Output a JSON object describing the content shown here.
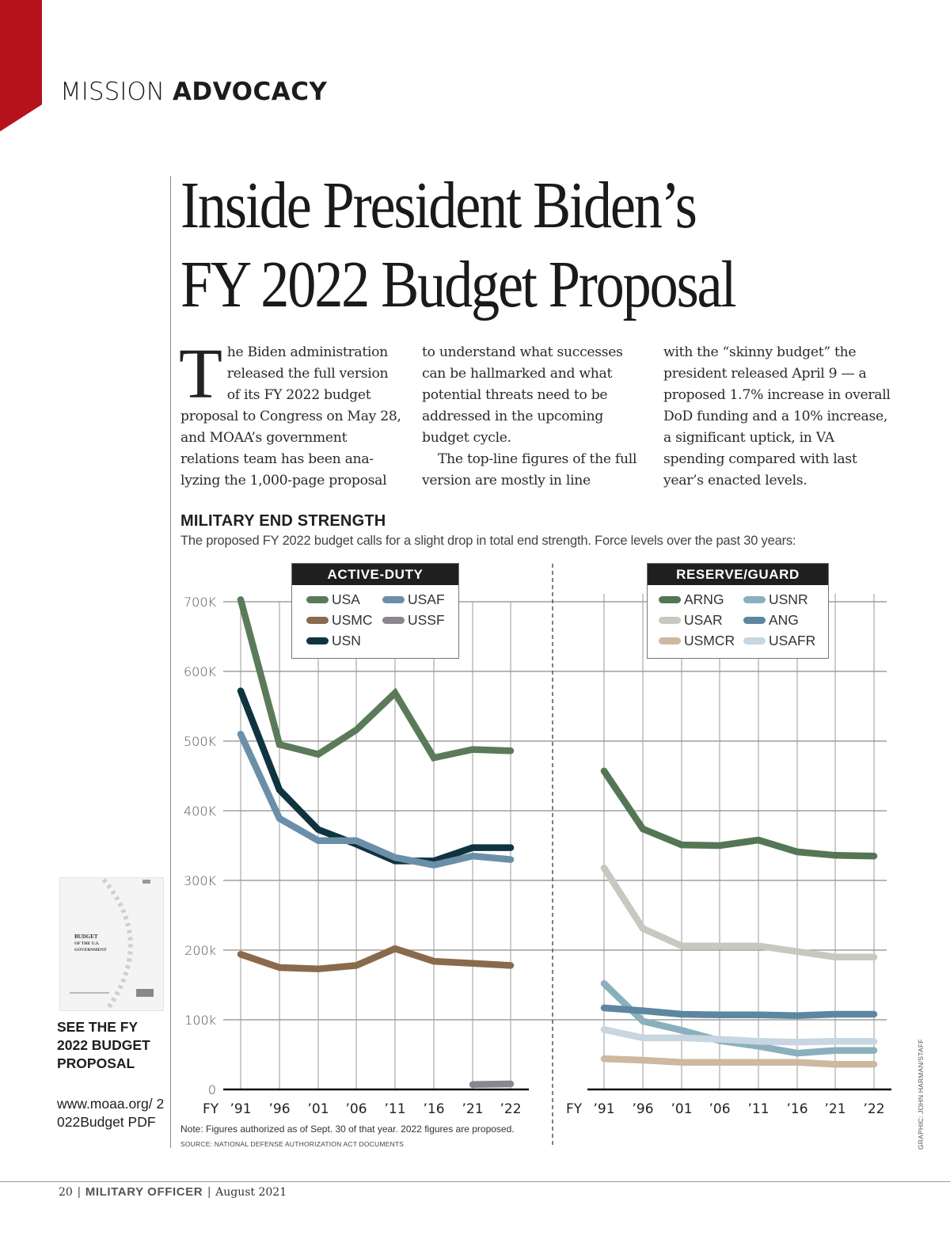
{
  "section": {
    "light": "MISSION",
    "bold": "ADVOCACY",
    "accent_color": "#b5121b"
  },
  "headline": {
    "line1": "Inside President Biden’s",
    "line2": "FY 2022 Budget Proposal"
  },
  "article": {
    "dropcap": "T",
    "col1": "he Biden administration released the full version of its FY 2022 budget proposal to Congress on May 28, and MOAA’s government relations team has been ana-lyzing the 1,000-page proposal",
    "col2_p1": "to understand what successes can be hallmarked and what potential threats need to be addressed in the upcoming budget cycle.",
    "col2_p2": "The top-line figures of the full version are mostly in line",
    "col3": "with the “skinny budget” the president released April 9 — a proposed 1.7% increase in overall DoD funding and a 10% increase, a significant uptick, in VA spending compared with last year’s enacted levels."
  },
  "sidebar": {
    "thumb_title": "BUDGET OF THE U.S. GOVERNMENT",
    "cta": "SEE THE FY 2022 BUDGET PROPOSAL",
    "link": "www.moaa.org/ 2022Budget PDF"
  },
  "footer": {
    "page": "20",
    "magazine": "MILITARY OFFICER",
    "date": "August 2021"
  },
  "chart_data": {
    "type": "line",
    "title": "MILITARY END STRENGTH",
    "subtitle": "The proposed FY 2022 budget calls for a slight drop in total end strength. Force levels over the past 30 years:",
    "note": "Note: Figures authorized as of Sept. 30 of that year. 2022 figures are proposed.",
    "source": "SOURCE: NATIONAL DEFENSE AUTHORIZATION ACT DOCUMENTS",
    "credit": "GRAPHIC: JOHN HARMAN/STAFF",
    "x_prefix": "FY",
    "categories": [
      "’91",
      "’96",
      "’01",
      "’06",
      "’11",
      "’16",
      "’21",
      "’22"
    ],
    "yticks": [
      "0",
      "100k",
      "200k",
      "300K",
      "400K",
      "500K",
      "600K",
      "700K"
    ],
    "ylim": [
      0,
      700000
    ],
    "grid": true,
    "panels": [
      {
        "name": "ACTIVE-DUTY",
        "legend_position": "top-center",
        "series": [
          {
            "name": "USA",
            "color": "#5b7a5a",
            "values": [
              703000,
              495000,
              481000,
              516000,
              569000,
              476000,
              488000,
              486000
            ]
          },
          {
            "name": "USMC",
            "color": "#8a6a4c",
            "values": [
              194000,
              175000,
              173000,
              178000,
              202000,
              184000,
              181000,
              178000
            ]
          },
          {
            "name": "USN",
            "color": "#0f3440",
            "values": [
              572000,
              430000,
              373000,
              352000,
              328000,
              328000,
              347000,
              347000
            ]
          },
          {
            "name": "USAF",
            "color": "#6b8fa8",
            "values": [
              510000,
              389000,
              357000,
              357000,
              333000,
              322000,
              335000,
              330000
            ]
          },
          {
            "name": "USSF",
            "color": "#8a8590",
            "values": [
              null,
              null,
              null,
              null,
              null,
              null,
              7000,
              8000
            ]
          }
        ],
        "legend_order": [
          "USA",
          "USAF",
          "USMC",
          "USSF",
          "USN"
        ]
      },
      {
        "name": "RESERVE/GUARD",
        "legend_position": "top-center",
        "series": [
          {
            "name": "ARNG",
            "color": "#547654",
            "values": [
              457000,
              374000,
              351000,
              350000,
              358000,
              341000,
              336000,
              335000
            ]
          },
          {
            "name": "USAR",
            "color": "#c8c8c0",
            "values": [
              318000,
              231000,
              206000,
              206000,
              206000,
              198000,
              190000,
              190000
            ]
          },
          {
            "name": "USMCR",
            "color": "#cdb9a0",
            "values": [
              44000,
              42000,
              39000,
              39000,
              39000,
              39000,
              36000,
              36000
            ]
          },
          {
            "name": "USNR",
            "color": "#8ab0bd",
            "values": [
              152000,
              98000,
              85000,
              70000,
              62000,
              52000,
              56000,
              56000
            ]
          },
          {
            "name": "ANG",
            "color": "#5d86a0",
            "values": [
              117000,
              113000,
              108000,
              107000,
              107000,
              106000,
              108000,
              108000
            ]
          },
          {
            "name": "USAFR",
            "color": "#c7d6e0",
            "values": [
              86000,
              74000,
              74000,
              72000,
              69000,
              68000,
              69000,
              69000
            ]
          }
        ],
        "legend_order": [
          "ARNG",
          "USNR",
          "USAR",
          "ANG",
          "USMCR",
          "USAFR"
        ]
      }
    ]
  }
}
